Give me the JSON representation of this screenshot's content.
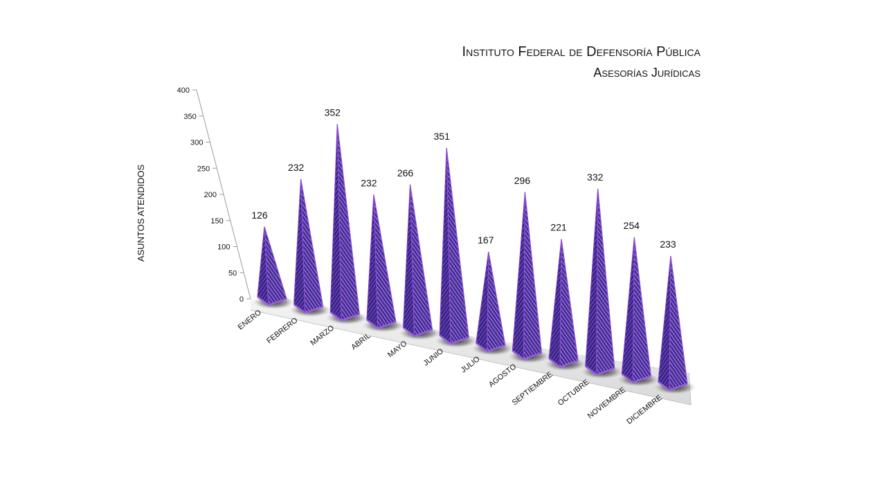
{
  "chart_data": {
    "type": "bar",
    "title": "Instituto Federal de Defensoría Pública",
    "subtitle": "Asesorías Jurídicas",
    "ylabel": "ASUNTOS ATENDIDOS",
    "xlabel": "",
    "ylim": [
      0,
      400
    ],
    "yticks": [
      "0",
      "50",
      "100",
      "150",
      "200",
      "250",
      "300",
      "350",
      "400"
    ],
    "categories": [
      "ENERO",
      "FEBRERO",
      "MARZO",
      "ABRIL",
      "MAYO",
      "JUNIO",
      "JULIO",
      "AGOSTO",
      "SEPTIEMBRE",
      "OCTUBRE",
      "NOVIEMBRE",
      "DICIEMBRE"
    ],
    "values": [
      126,
      232,
      352,
      232,
      266,
      351,
      167,
      296,
      221,
      332,
      254,
      233
    ],
    "data_labels": [
      "126",
      "232",
      "352",
      "232",
      "266",
      "351",
      "167",
      "296",
      "221",
      "332",
      "254",
      "233"
    ],
    "legend": "none",
    "grid": false,
    "style": "3D pyramid",
    "colors": {
      "bar": "#7a3fc0",
      "bar_dark": "#3a1d7a",
      "bar_light": "#b89be6",
      "axis": "#9a9a9a",
      "text": "#111111"
    }
  }
}
